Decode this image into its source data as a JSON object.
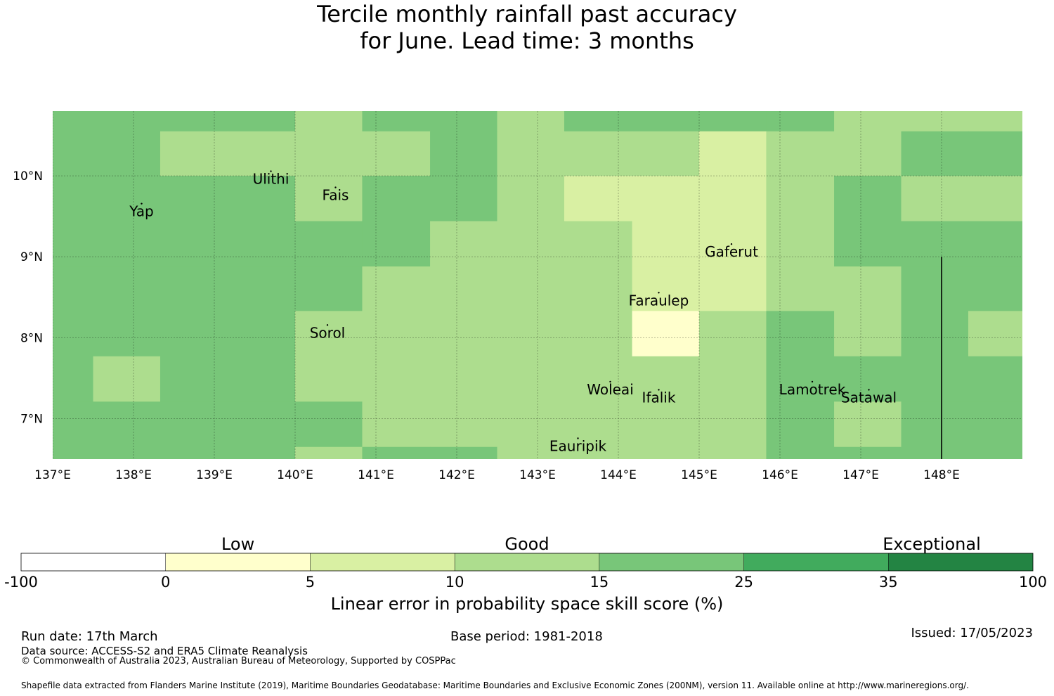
{
  "title": {
    "line1": "Tercile monthly rainfall past accuracy",
    "line2": "for June. Lead time: 3 months"
  },
  "map": {
    "lon_range": [
      137,
      149
    ],
    "lat_range": [
      6.5,
      10.8
    ],
    "lon_ticks": [
      {
        "value": 137,
        "label": "137°E"
      },
      {
        "value": 138,
        "label": "138°E"
      },
      {
        "value": 139,
        "label": "139°E"
      },
      {
        "value": 140,
        "label": "140°E"
      },
      {
        "value": 141,
        "label": "141°E"
      },
      {
        "value": 142,
        "label": "142°E"
      },
      {
        "value": 143,
        "label": "143°E"
      },
      {
        "value": 144,
        "label": "144°E"
      },
      {
        "value": 145,
        "label": "145°E"
      },
      {
        "value": 146,
        "label": "146°E"
      },
      {
        "value": 147,
        "label": "147°E"
      },
      {
        "value": 148,
        "label": "148°E"
      }
    ],
    "lat_ticks": [
      {
        "value": 10,
        "label": "10°N"
      },
      {
        "value": 9,
        "label": "9°N"
      },
      {
        "value": 8,
        "label": "8°N"
      },
      {
        "value": 7,
        "label": "7°N"
      }
    ],
    "grid_lon_edges": [
      136.67,
      137.5,
      138.33,
      139.17,
      140.0,
      140.83,
      141.67,
      142.5,
      143.33,
      144.17,
      145.0,
      145.83,
      146.67,
      147.5,
      148.33,
      149.17
    ],
    "grid_lat_edges": [
      10.8,
      10.55,
      10.0,
      9.44,
      8.88,
      8.33,
      7.77,
      7.21,
      6.65,
      6.5
    ],
    "skill_classes": [
      [
        3,
        3,
        3,
        3,
        2,
        3,
        3,
        2,
        3,
        3,
        3,
        3,
        2,
        2,
        2
      ],
      [
        3,
        3,
        2,
        2,
        2,
        2,
        3,
        2,
        2,
        2,
        1,
        2,
        2,
        3,
        3
      ],
      [
        3,
        3,
        3,
        3,
        2,
        3,
        3,
        2,
        1,
        1,
        1,
        2,
        3,
        2,
        2
      ],
      [
        3,
        3,
        3,
        3,
        3,
        3,
        2,
        2,
        2,
        1,
        1,
        2,
        3,
        3,
        3
      ],
      [
        3,
        3,
        3,
        3,
        3,
        2,
        2,
        2,
        2,
        1,
        1,
        2,
        2,
        3,
        3
      ],
      [
        3,
        3,
        3,
        3,
        2,
        2,
        2,
        2,
        2,
        0,
        2,
        3,
        2,
        3,
        2
      ],
      [
        3,
        2,
        3,
        3,
        2,
        2,
        2,
        2,
        2,
        2,
        2,
        3,
        3,
        3,
        3
      ],
      [
        3,
        3,
        3,
        3,
        3,
        2,
        2,
        2,
        2,
        2,
        2,
        3,
        2,
        3,
        3
      ],
      [
        3,
        3,
        3,
        3,
        2,
        3,
        3,
        2,
        2,
        2,
        2,
        3,
        3,
        3,
        3
      ]
    ],
    "class_colors": [
      "#ffffcc",
      "#d9f0a3",
      "#addd8e",
      "#78c679",
      "#41ab5d",
      "#238443"
    ],
    "islands": [
      {
        "name": "Yap",
        "lon": 138.1,
        "lat": 9.5
      },
      {
        "name": "Ulithi",
        "lon": 139.7,
        "lat": 9.9
      },
      {
        "name": "Fais",
        "lon": 140.5,
        "lat": 9.7
      },
      {
        "name": "Gaferut",
        "lon": 145.4,
        "lat": 9.0
      },
      {
        "name": "Faraulep",
        "lon": 144.5,
        "lat": 8.4
      },
      {
        "name": "Sorol",
        "lon": 140.4,
        "lat": 8.0
      },
      {
        "name": "Woleai",
        "lon": 143.9,
        "lat": 7.3
      },
      {
        "name": "Ifalik",
        "lon": 144.5,
        "lat": 7.2
      },
      {
        "name": "Lamotrek",
        "lon": 146.4,
        "lat": 7.3
      },
      {
        "name": "Satawal",
        "lon": 147.1,
        "lat": 7.2
      },
      {
        "name": "Eauripik",
        "lon": 143.5,
        "lat": 6.6
      }
    ],
    "boundary_lon": 148.0,
    "boundary_lat_top": 9.0
  },
  "colorbar": {
    "ticks": [
      "-100",
      "0",
      "5",
      "10",
      "15",
      "25",
      "35",
      "100"
    ],
    "colors": [
      "#ffffff",
      "#ffffcc",
      "#d9f0a3",
      "#addd8e",
      "#78c679",
      "#41ab5d",
      "#238443"
    ],
    "categories": [
      {
        "label": "Low",
        "position": 1.5
      },
      {
        "label": "Good",
        "position": 3.5
      },
      {
        "label": "Exceptional",
        "position": 6.3
      }
    ],
    "label": "Linear error in probability space skill score (%)"
  },
  "footer": {
    "run_date": "Run date: 17th March",
    "base_period": "Base period: 1981-2018",
    "issued": "Issued: 17/05/2023",
    "data_source": "Data source: ACCESS-S2 and ERA5 Climate Reanalysis",
    "copyright": "© Commonwealth of Australia 2023, Australian Bureau of Meteorology, Supported by COSPPac",
    "shapefile": "Shapefile data extracted from Flanders Marine Institute (2019), Maritime Boundaries Geodatabase: Maritime Boundaries and Exclusive Economic Zones (200NM), version 11. Available online at http://www.marineregions.org/."
  }
}
